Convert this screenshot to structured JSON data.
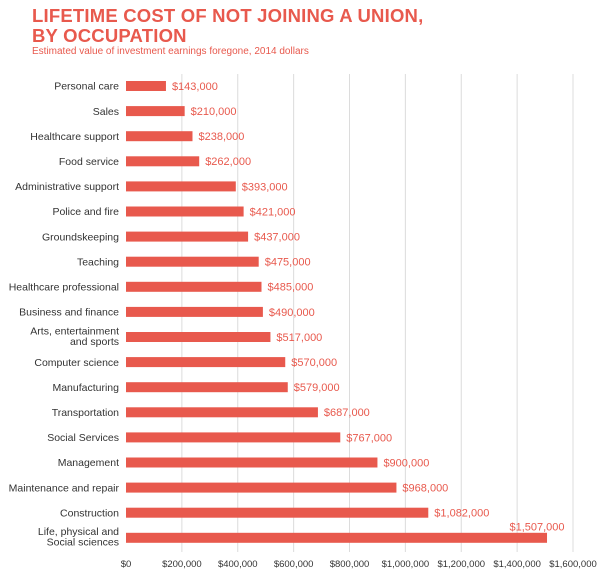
{
  "title_lines": [
    "LIFETIME COST OF NOT JOINING A UNION,",
    "BY OCCUPATION"
  ],
  "subtitle": "Estimated value of investment earnings foregone, 2014 dollars",
  "colors": {
    "accent": "#e8594d",
    "bar": "#e8594d",
    "grid": "#dcdcdc",
    "text": "#333333"
  },
  "chart_data": {
    "type": "bar",
    "orientation": "horizontal",
    "title": "LIFETIME COST OF NOT JOINING A UNION, BY OCCUPATION",
    "subtitle": "Estimated value of investment earnings foregone, 2014 dollars",
    "categories": [
      [
        "Personal care"
      ],
      [
        "Sales"
      ],
      [
        "Healthcare support"
      ],
      [
        "Food service"
      ],
      [
        "Administrative support"
      ],
      [
        "Police and fire"
      ],
      [
        "Groundskeeping"
      ],
      [
        "Teaching"
      ],
      [
        "Healthcare professional"
      ],
      [
        "Business and finance"
      ],
      [
        "Arts, entertainment",
        "and sports"
      ],
      [
        "Computer science"
      ],
      [
        "Manufacturing"
      ],
      [
        "Transportation"
      ],
      [
        "Social Services"
      ],
      [
        "Management"
      ],
      [
        "Maintenance and repair"
      ],
      [
        "Construction"
      ],
      [
        "Life, physical and",
        "Social sciences"
      ]
    ],
    "values": [
      143000,
      210000,
      238000,
      262000,
      393000,
      421000,
      437000,
      475000,
      485000,
      490000,
      517000,
      570000,
      579000,
      687000,
      767000,
      900000,
      968000,
      1082000,
      1507000
    ],
    "value_labels": [
      "$143,000",
      "$210,000",
      "$238,000",
      "$262,000",
      "$393,000",
      "$421,000",
      "$437,000",
      "$475,000",
      "$485,000",
      "$490,000",
      "$517,000",
      "$570,000",
      "$579,000",
      "$687,000",
      "$767,000",
      "$900,000",
      "$968,000",
      "$1,082,000",
      "$1,507,000"
    ],
    "x_ticks": [
      0,
      200000,
      400000,
      600000,
      800000,
      1000000,
      1200000,
      1400000,
      1600000
    ],
    "x_tick_labels": [
      "$0",
      "$200,000",
      "$400,000",
      "$600,000",
      "$800,000",
      "$1,000,000",
      "$1,200,000",
      "$1,400,000",
      "$1,600,000"
    ],
    "xlim": [
      0,
      1600000
    ],
    "xlabel": "",
    "ylabel": "",
    "grid": "vertical",
    "legend": "none"
  }
}
